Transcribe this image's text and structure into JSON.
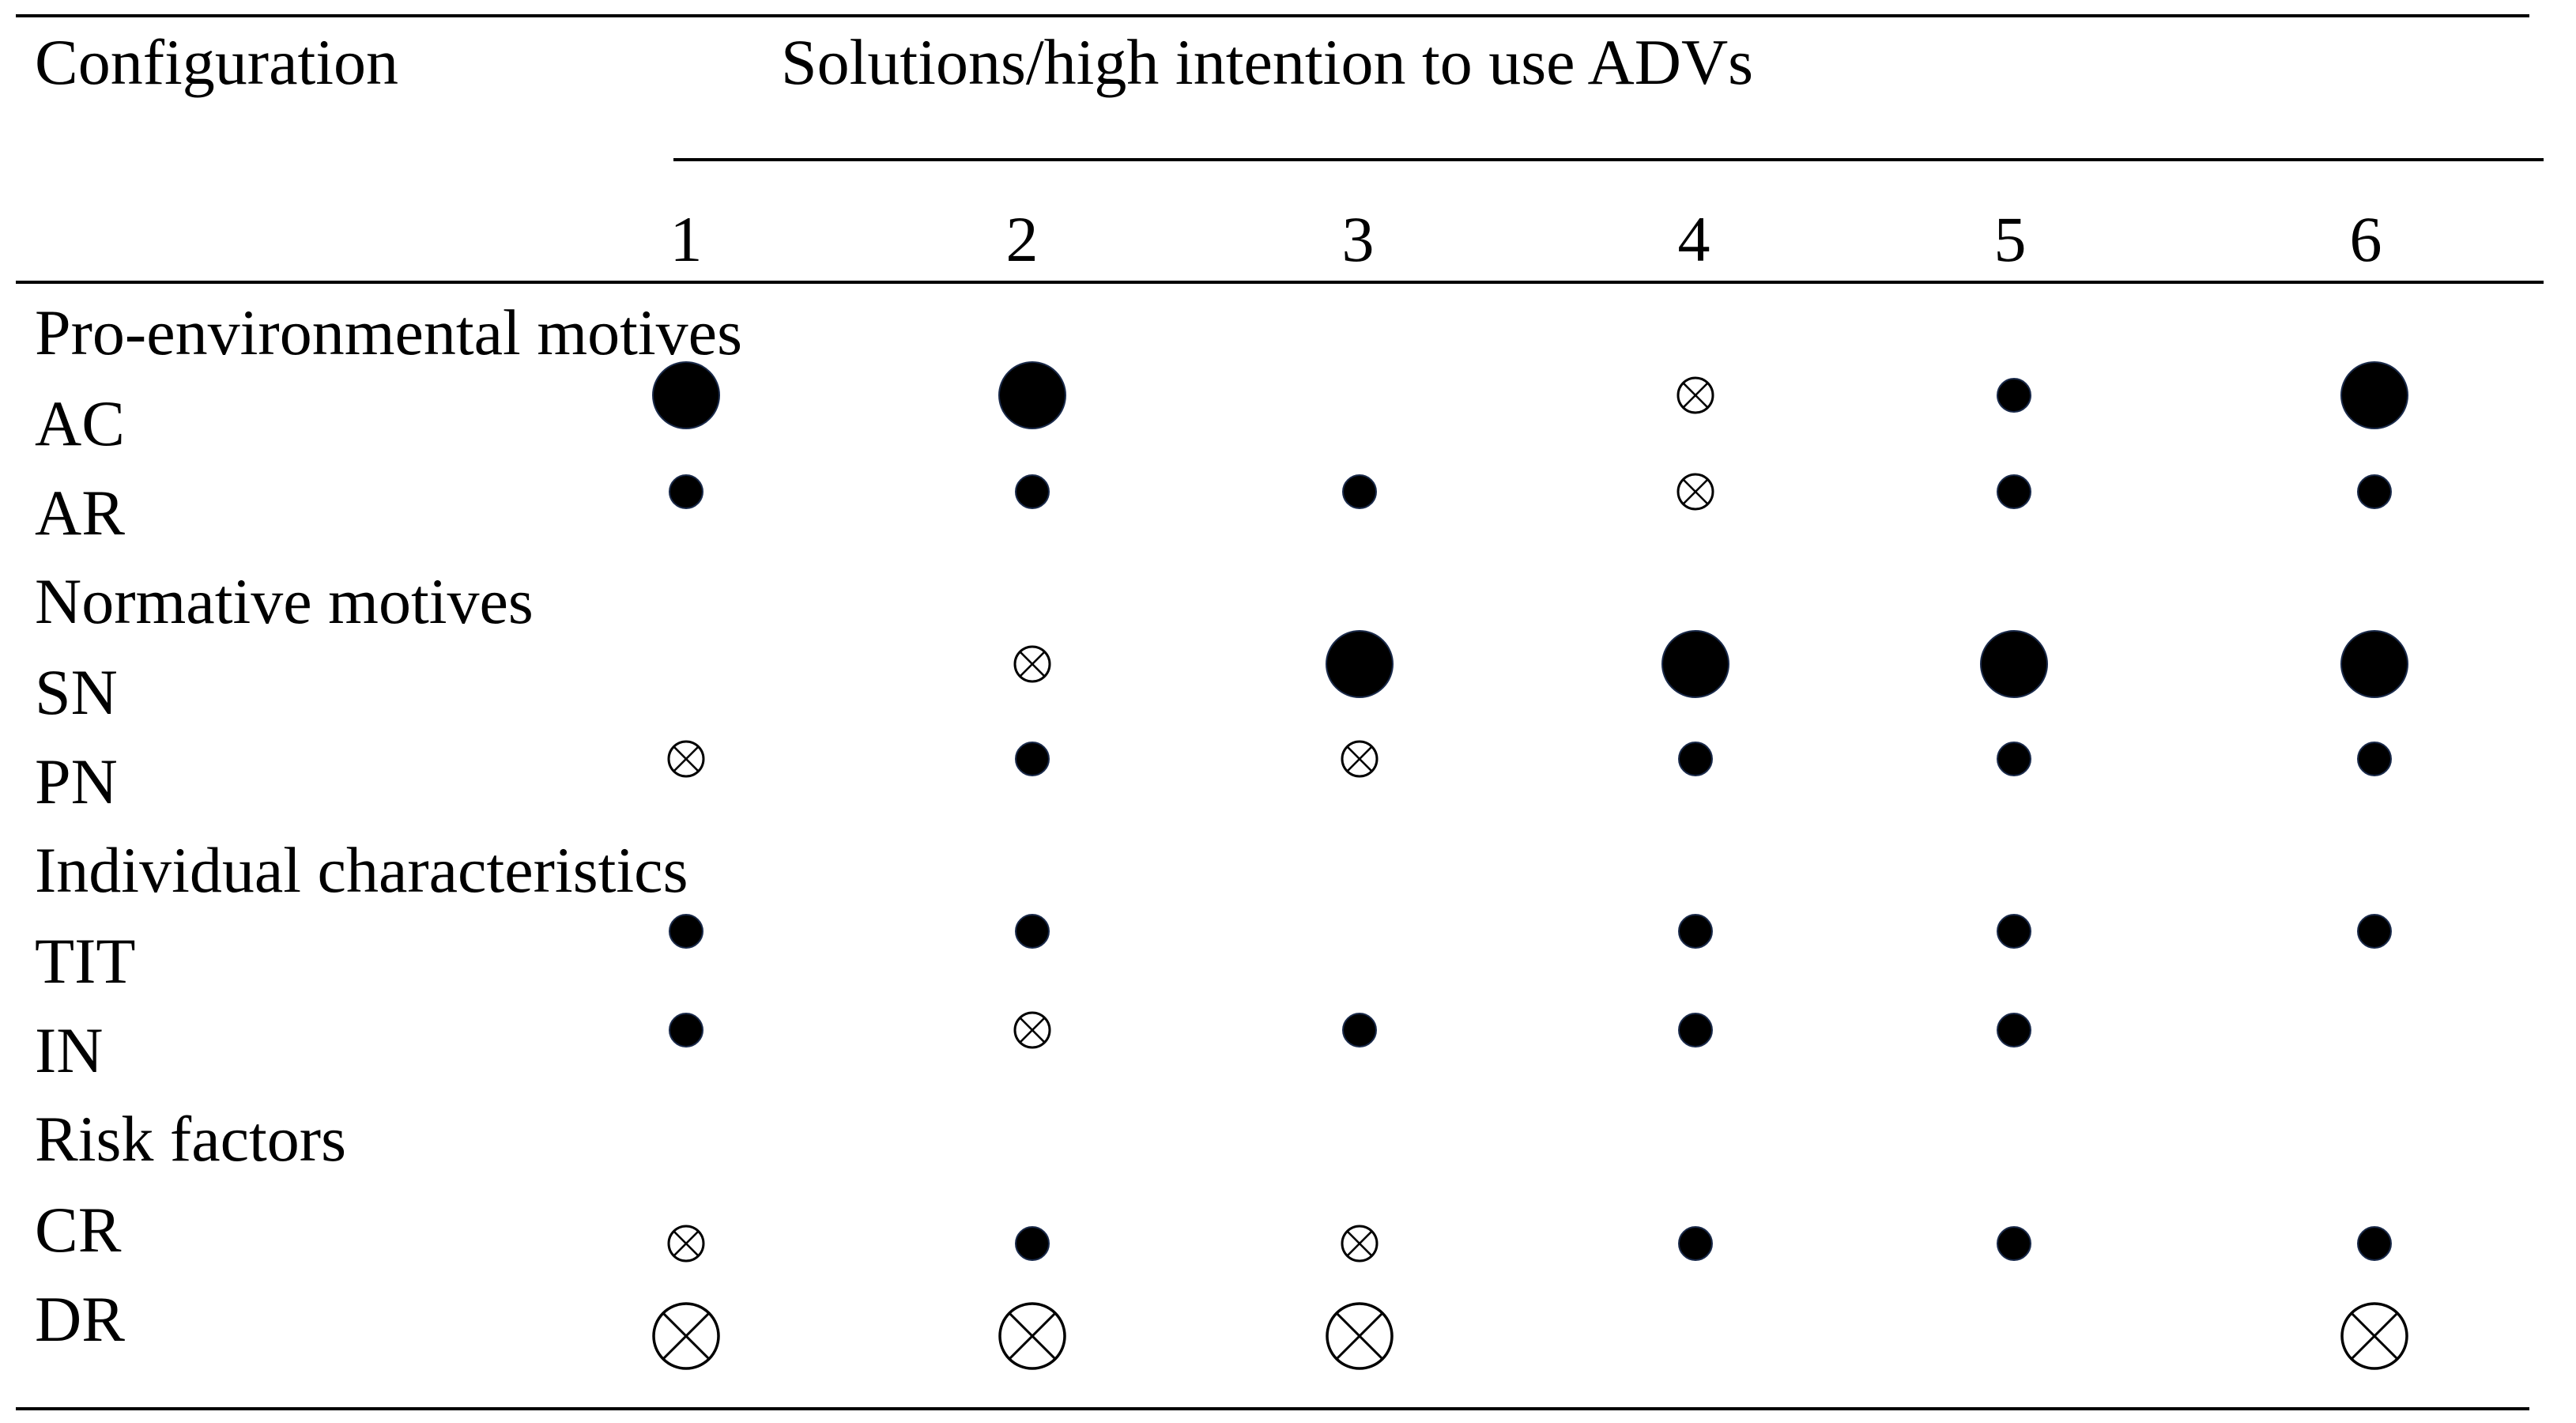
{
  "header": {
    "configuration_label": "Configuration",
    "solutions_label": "Solutions/high intention to use ADVs",
    "columns": [
      "1",
      "2",
      "3",
      "4",
      "5",
      "6"
    ]
  },
  "sections": [
    {
      "heading": "Pro-environmental motives",
      "rows": [
        {
          "label": "AC",
          "cells": [
            "core-present",
            "core-present",
            "",
            "peripheral-absent",
            "peripheral-present",
            "core-present"
          ]
        },
        {
          "label": "AR",
          "cells": [
            "peripheral-present",
            "peripheral-present",
            "peripheral-present",
            "peripheral-absent",
            "peripheral-present",
            "peripheral-present"
          ]
        }
      ]
    },
    {
      "heading": "Normative motives",
      "rows": [
        {
          "label": "SN",
          "cells": [
            "",
            "peripheral-absent",
            "core-present",
            "core-present",
            "core-present",
            "core-present"
          ]
        },
        {
          "label": "PN",
          "cells": [
            "peripheral-absent",
            "peripheral-present",
            "peripheral-absent",
            "peripheral-present",
            "peripheral-present",
            "peripheral-present"
          ]
        }
      ]
    },
    {
      "heading": "Individual characteristics",
      "rows": [
        {
          "label": "TIT",
          "cells": [
            "peripheral-present",
            "peripheral-present",
            "",
            "peripheral-present",
            "peripheral-present",
            "peripheral-present"
          ]
        },
        {
          "label": "IN",
          "cells": [
            "peripheral-present",
            "peripheral-absent",
            "peripheral-present",
            "peripheral-present",
            "peripheral-present",
            ""
          ]
        }
      ]
    },
    {
      "heading": "Risk factors",
      "rows": [
        {
          "label": "CR",
          "cells": [
            "peripheral-absent",
            "peripheral-present",
            "peripheral-absent",
            "peripheral-present",
            "peripheral-present",
            "peripheral-present"
          ]
        },
        {
          "label": "DR",
          "cells": [
            "core-absent",
            "core-absent",
            "core-absent",
            "",
            "",
            "core-absent"
          ]
        }
      ]
    }
  ],
  "colors": {
    "ink": "#000000",
    "mark_fill": "#000000",
    "background": "#ffffff"
  }
}
